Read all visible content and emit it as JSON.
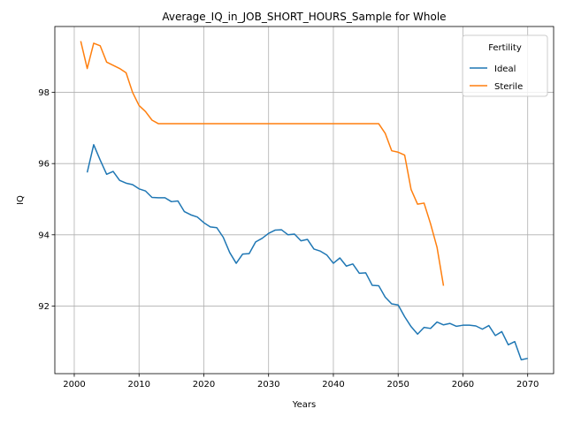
{
  "chart_data": {
    "type": "line",
    "title": "Average_IQ_in_JOB_SHORT_HOURS_Sample for Whole",
    "xlabel": "Years",
    "ylabel": "IQ",
    "xlim": [
      1997,
      2074
    ],
    "ylim": [
      90.1,
      99.85
    ],
    "xticks": [
      2000,
      2010,
      2020,
      2030,
      2040,
      2050,
      2060,
      2070
    ],
    "yticks": [
      92,
      94,
      96,
      98
    ],
    "grid": true,
    "legend": {
      "title": "Fertility",
      "placement": "top-right"
    },
    "series": [
      {
        "name": "Ideal",
        "color": "#1f77b4",
        "x": [
          2002,
          2003,
          2004,
          2005,
          2006,
          2007,
          2008,
          2009,
          2010,
          2011,
          2012,
          2013,
          2014,
          2015,
          2016,
          2017,
          2018,
          2019,
          2020,
          2021,
          2022,
          2023,
          2024,
          2025,
          2026,
          2027,
          2028,
          2029,
          2030,
          2031,
          2032,
          2033,
          2034,
          2035,
          2036,
          2037,
          2038,
          2039,
          2040,
          2041,
          2042,
          2043,
          2044,
          2045,
          2046,
          2047,
          2048,
          2049,
          2050,
          2051,
          2052,
          2053,
          2054,
          2055,
          2056,
          2057,
          2058,
          2059,
          2060,
          2061,
          2062,
          2063,
          2064,
          2065,
          2066,
          2067,
          2068,
          2069,
          2070
        ],
        "y": [
          95.75,
          96.53,
          96.1,
          95.7,
          95.78,
          95.53,
          95.45,
          95.41,
          95.29,
          95.23,
          95.05,
          95.04,
          95.04,
          94.93,
          94.95,
          94.65,
          94.56,
          94.5,
          94.34,
          94.22,
          94.2,
          93.93,
          93.5,
          93.2,
          93.46,
          93.47,
          93.8,
          93.9,
          94.04,
          94.13,
          94.14,
          94.0,
          94.02,
          93.83,
          93.87,
          93.6,
          93.54,
          93.43,
          93.2,
          93.35,
          93.12,
          93.18,
          92.92,
          92.93,
          92.58,
          92.57,
          92.25,
          92.06,
          92.03,
          91.7,
          91.42,
          91.21,
          91.4,
          91.37,
          91.55,
          91.47,
          91.51,
          91.43,
          91.46,
          91.46,
          91.44,
          91.35,
          91.45,
          91.17,
          91.28,
          90.91,
          91.0,
          90.49,
          90.53
        ]
      },
      {
        "name": "Sterile",
        "color": "#ff7f0e",
        "x": [
          2001,
          2002,
          2003,
          2004,
          2005,
          2006,
          2007,
          2008,
          2009,
          2010,
          2011,
          2012,
          2013,
          2014,
          2015,
          2016,
          2017,
          2018,
          2019,
          2020,
          2021,
          2022,
          2023,
          2024,
          2025,
          2026,
          2027,
          2028,
          2029,
          2030,
          2031,
          2032,
          2033,
          2034,
          2035,
          2036,
          2037,
          2038,
          2039,
          2040,
          2041,
          2042,
          2043,
          2044,
          2045,
          2046,
          2047,
          2048,
          2049,
          2050,
          2051,
          2052,
          2053,
          2054,
          2055,
          2056,
          2057
        ],
        "y": [
          99.44,
          98.67,
          99.38,
          99.31,
          98.85,
          98.76,
          98.67,
          98.55,
          98.0,
          97.63,
          97.46,
          97.22,
          97.12,
          97.12,
          97.12,
          97.12,
          97.12,
          97.12,
          97.12,
          97.12,
          97.12,
          97.12,
          97.12,
          97.12,
          97.12,
          97.12,
          97.12,
          97.12,
          97.12,
          97.12,
          97.12,
          97.12,
          97.12,
          97.12,
          97.12,
          97.12,
          97.12,
          97.12,
          97.12,
          97.12,
          97.12,
          97.12,
          97.12,
          97.12,
          97.12,
          97.12,
          97.12,
          96.85,
          96.36,
          96.32,
          96.24,
          95.27,
          94.86,
          94.89,
          94.31,
          93.65,
          92.57
        ]
      }
    ]
  }
}
